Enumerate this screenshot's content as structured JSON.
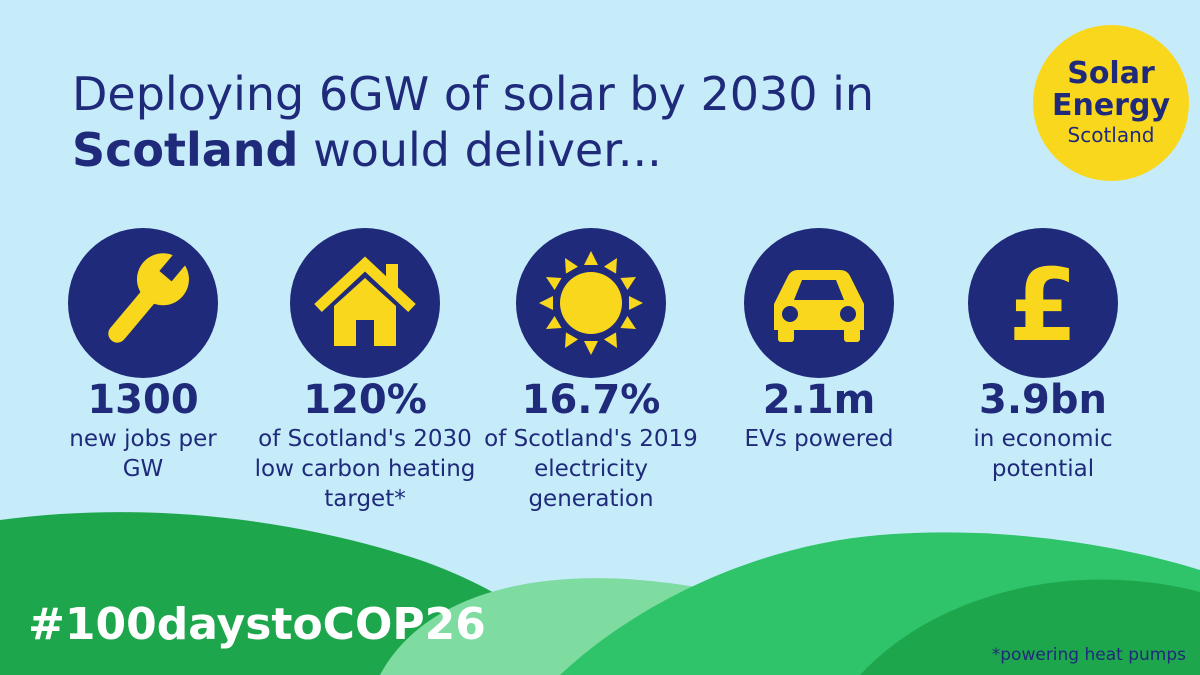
{
  "headline": {
    "part1": "Deploying 6GW of solar by 2030 in",
    "bold": "Scotland",
    "part2": "would deliver..."
  },
  "logo": {
    "line1": "Solar",
    "line2": "Energy",
    "line3": "Scotland"
  },
  "stats": [
    {
      "icon": "wrench-icon",
      "value": "1300",
      "desc1": "new jobs per",
      "desc2": "GW",
      "desc3": ""
    },
    {
      "icon": "house-icon",
      "value": "120%",
      "desc1": "of Scotland's 2030",
      "desc2": "low carbon heating",
      "desc3": "target*"
    },
    {
      "icon": "sun-icon",
      "value": "16.7%",
      "desc1": "of Scotland's 2019",
      "desc2": "electricity",
      "desc3": "generation"
    },
    {
      "icon": "car-icon",
      "value": "2.1m",
      "desc1": "EVs powered",
      "desc2": "",
      "desc3": ""
    },
    {
      "icon": "pound-icon",
      "value": "3.9bn",
      "desc1": "in economic",
      "desc2": "potential",
      "desc3": ""
    }
  ],
  "hashtag": "#100daystoCOP26",
  "footnote": "*powering heat pumps",
  "colors": {
    "background": "#c6ecfa",
    "navy": "#1f2a7a",
    "yellow": "#f9d71c",
    "hill_dark": "#1ea64c",
    "hill_mid": "#2fc46a",
    "hill_light": "#7fdca0"
  }
}
